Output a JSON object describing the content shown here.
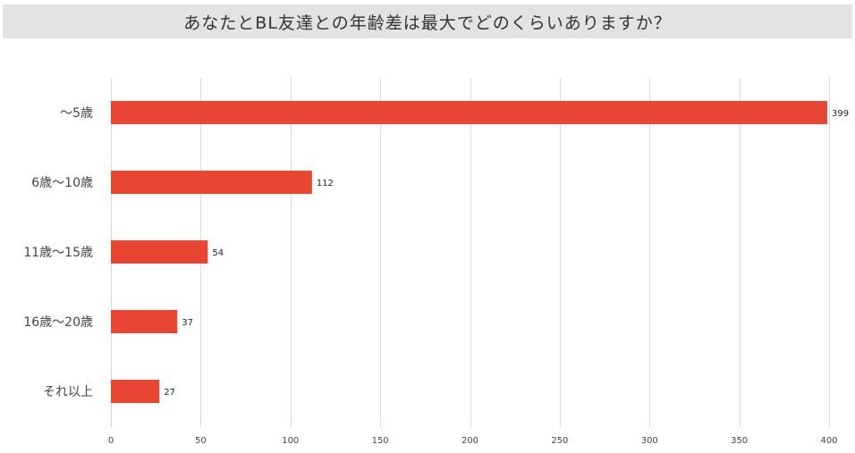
{
  "title": "あなたとBL友達との年齢差は最大でどのくらいありますか？",
  "colors": {
    "bar": "#e84532",
    "grid": "#d9d9d9",
    "title_bg": "#e3e3e3"
  },
  "chart_data": {
    "type": "bar",
    "orientation": "horizontal",
    "title": "あなたとBL友達との年齢差は最大でどのくらいありますか？",
    "categories": [
      "〜5歳",
      "6歳〜10歳",
      "11歳〜15歳",
      "16歳〜20歳",
      "それ以上"
    ],
    "values": [
      399,
      112,
      54,
      37,
      27
    ],
    "xlim": [
      0,
      400
    ],
    "xticks": [
      0,
      50,
      100,
      150,
      200,
      250,
      300,
      350,
      400
    ],
    "grid": true,
    "legend": "none"
  }
}
